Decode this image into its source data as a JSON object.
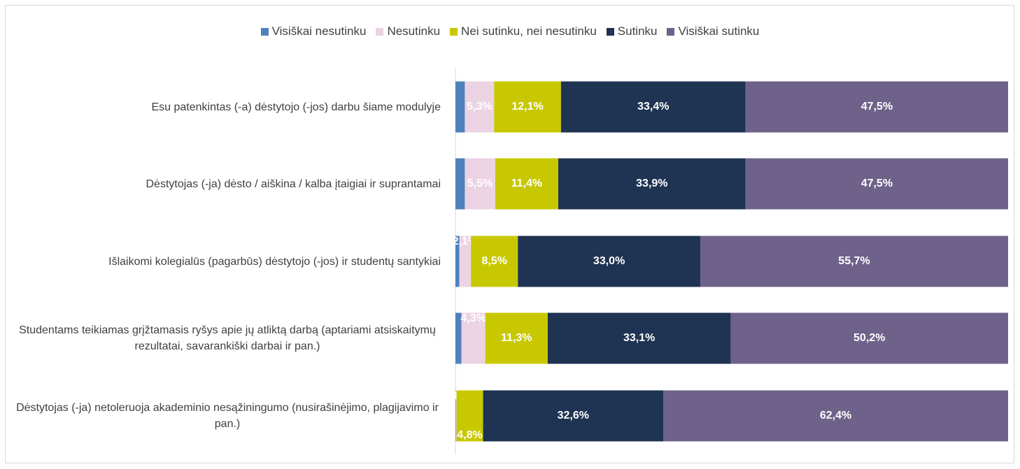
{
  "chart_data": {
    "type": "stacked-bar-horizontal",
    "categories": [
      "Esu patenkintas (-a) dėstytojo (-jos) darbu šiame modulyje",
      "Dėstytojas (-ja) dėsto / aiškina / kalba įtaigiai ir suprantamai",
      "Išlaikomi kolegialūs (pagarbūs) dėstytojo (-jos) ir studentų santykiai",
      "Studentams teikiamas grįžtamasis ryšys apie jų atliktą darbą (aptariami atsiskaitymų rezultatai, savarankiški darbai ir pan.)",
      "Dėstytojas (-ja) netoleruoja akademinio nesąžiningumo (nusirašinėjimo, plagijavimo ir pan.)"
    ],
    "xlim": [
      0,
      100
    ],
    "legend": "top",
    "series": [
      {
        "name": "Visiškai nesutinku",
        "color": "#4f81bd",
        "values": [
          1.7,
          1.7,
          0.7,
          1.1,
          0.1
        ]
      },
      {
        "name": "Nesutinku",
        "color": "#ecd3e3",
        "values": [
          5.3,
          5.5,
          2.1,
          4.3,
          0.1
        ],
        "value_labels": [
          "5,3%",
          "5,5%",
          "2,1%",
          "4,3%",
          "0,1%"
        ]
      },
      {
        "name": "Nei sutinku, nei nesutinku",
        "color": "#c8c800",
        "values": [
          12.1,
          11.4,
          8.5,
          11.3,
          4.8
        ],
        "value_labels": [
          "12,1%",
          "11,4%",
          "8,5%",
          "11,3%",
          "4,8%"
        ]
      },
      {
        "name": "Sutinku",
        "color": "#1f3352",
        "values": [
          33.4,
          33.9,
          33.0,
          33.1,
          32.6
        ],
        "value_labels": [
          "33,4%",
          "33,9%",
          "33,0%",
          "33,1%",
          "32,6%"
        ]
      },
      {
        "name": "Visiškai sutinku",
        "color": "#6e628a",
        "values": [
          47.5,
          47.5,
          55.7,
          50.2,
          62.4
        ],
        "value_labels": [
          "47,5%",
          "47,5%",
          "55,7%",
          "50,2%",
          "62,4%"
        ]
      }
    ]
  }
}
